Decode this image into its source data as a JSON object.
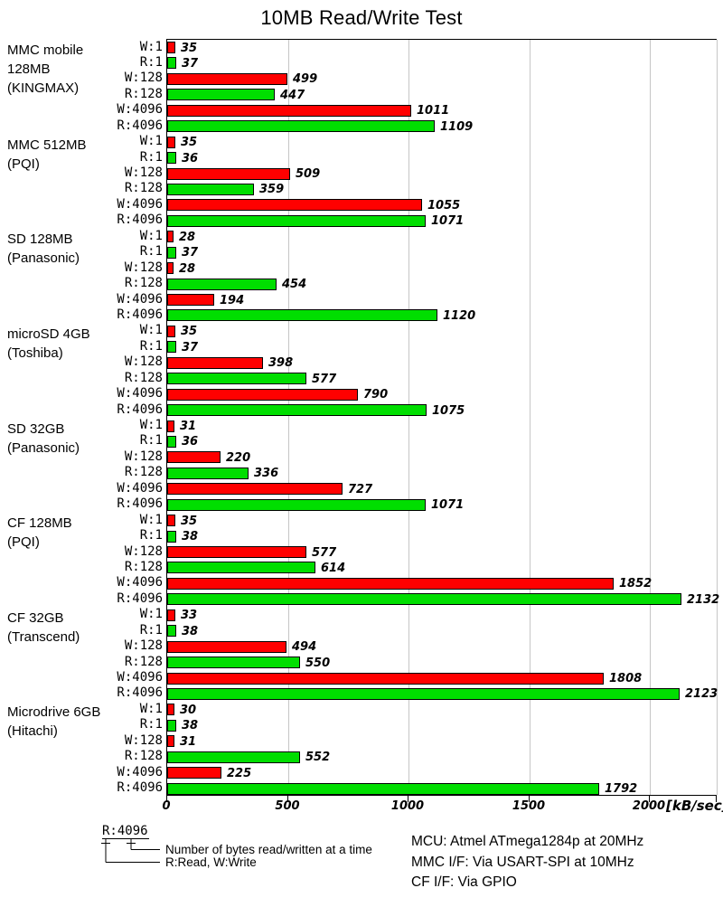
{
  "title": "10MB Read/Write Test",
  "chart_data": {
    "type": "bar",
    "orientation": "horizontal",
    "title": "10MB Read/Write Test",
    "xlabel": "[kB/sec]",
    "x_ticks": [
      0,
      500,
      1000,
      1500,
      2000
    ],
    "xlim": [
      0,
      2280
    ],
    "grid": true,
    "legend_position": "none",
    "bar_colors": {
      "write": "#ff0000",
      "read": "#00de00"
    },
    "row_labels": [
      "W:1",
      "R:1",
      "W:128",
      "R:128",
      "W:4096",
      "R:4096"
    ],
    "row_kinds": [
      "write",
      "read",
      "write",
      "read",
      "write",
      "read"
    ],
    "groups": [
      {
        "label_lines": [
          "MMC mobile",
          "128MB",
          "(KINGMAX)"
        ],
        "values": [
          35,
          37,
          499,
          447,
          1011,
          1109
        ]
      },
      {
        "label_lines": [
          "MMC 512MB",
          "(PQI)"
        ],
        "values": [
          35,
          36,
          509,
          359,
          1055,
          1071
        ]
      },
      {
        "label_lines": [
          "SD 128MB",
          "(Panasonic)"
        ],
        "values": [
          28,
          37,
          28,
          454,
          194,
          1120
        ]
      },
      {
        "label_lines": [
          "microSD 4GB",
          "(Toshiba)"
        ],
        "values": [
          35,
          37,
          398,
          577,
          790,
          1075
        ]
      },
      {
        "label_lines": [
          "SD 32GB",
          "(Panasonic)"
        ],
        "values": [
          31,
          36,
          220,
          336,
          727,
          1071
        ]
      },
      {
        "label_lines": [
          "CF 128MB",
          "(PQI)"
        ],
        "values": [
          35,
          38,
          577,
          614,
          1852,
          2132
        ]
      },
      {
        "label_lines": [
          "CF 32GB",
          "(Transcend)"
        ],
        "values": [
          33,
          38,
          494,
          550,
          1808,
          2123
        ]
      },
      {
        "label_lines": [
          "Microdrive 6GB",
          "(Hitachi)"
        ],
        "values": [
          30,
          38,
          31,
          552,
          225,
          1792
        ]
      }
    ]
  },
  "legend": {
    "example_label": "R:4096",
    "note_bytes": "Number of bytes read/written at a time",
    "note_rw": "R:Read, W:Write"
  },
  "footer_info": {
    "line1": "MCU: Atmel ATmega1284p at 20MHz",
    "line2": "MMC I/F: Via USART-SPI at 10MHz",
    "line3": "CF I/F: Via GPIO"
  }
}
